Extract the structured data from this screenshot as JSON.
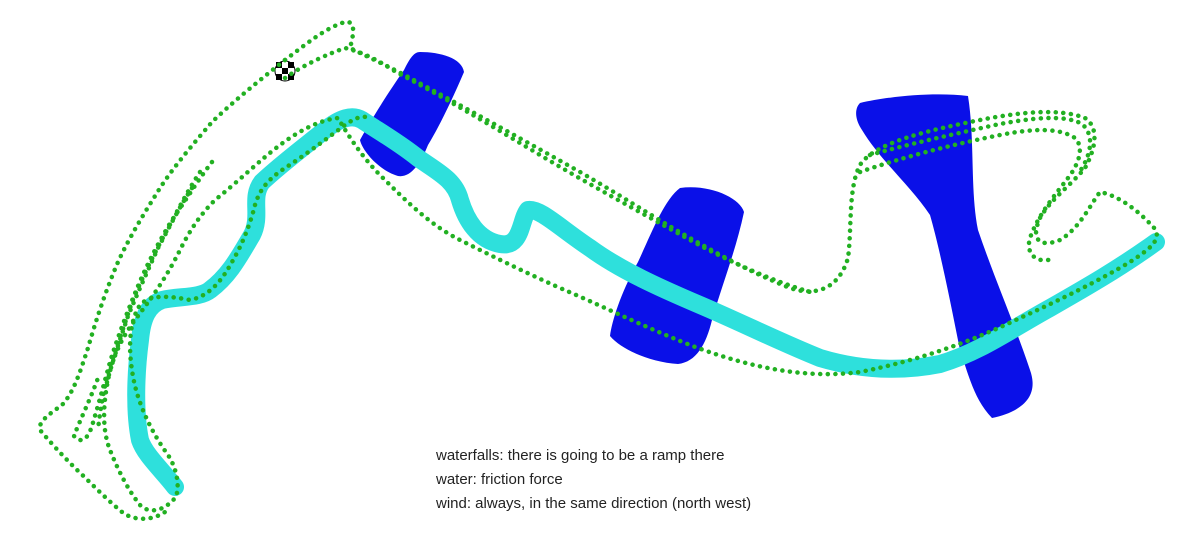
{
  "legend": {
    "waterfalls": "waterfalls: there is going to be a ramp there",
    "water": "water: friction force",
    "wind": "wind: always, in the same direction (north west)"
  },
  "colors": {
    "background": "#ffffff",
    "waterfall": "#0a10e8",
    "water": "#2ee0dc",
    "track_dots": "#22b022",
    "text": "#222222"
  },
  "icons": {
    "start": "checkered-flag-icon"
  }
}
